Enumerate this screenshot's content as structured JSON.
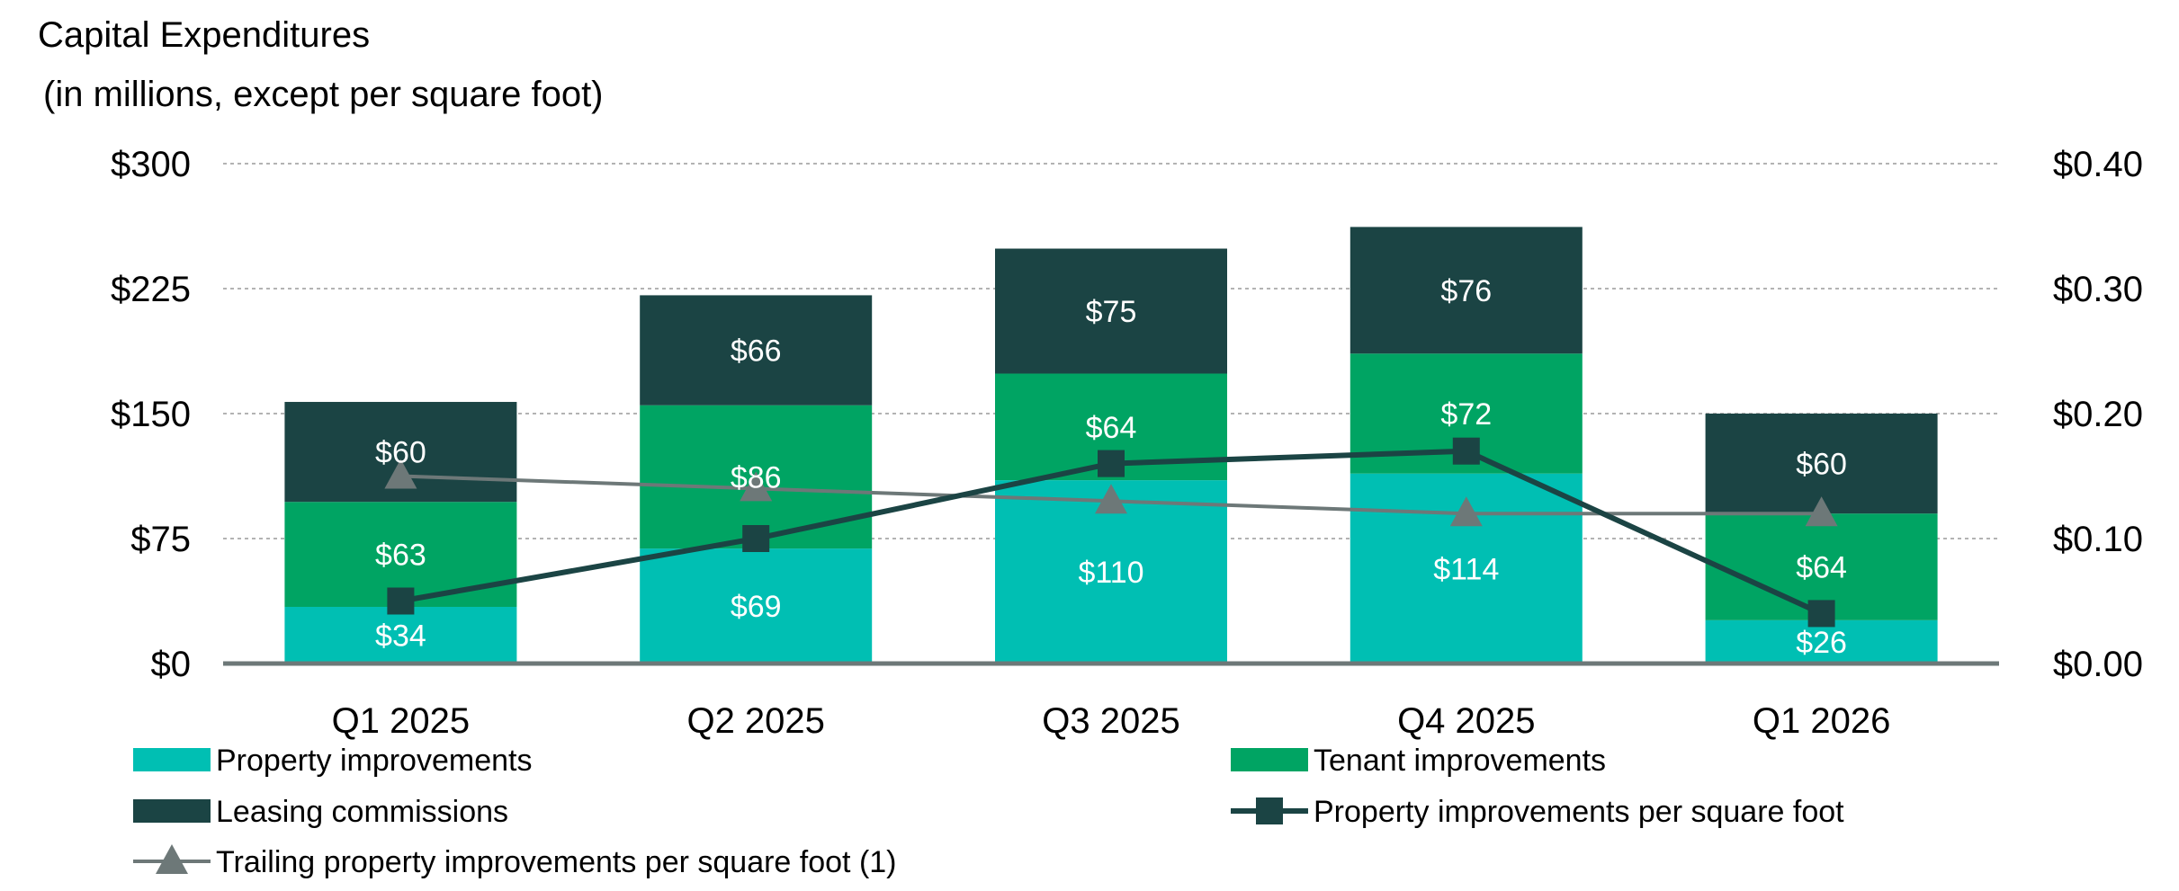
{
  "chart_data": {
    "type": "bar",
    "stacked": true,
    "title": "Capital Expenditures",
    "subtitle": "(in millions, except per square foot)",
    "categories": [
      "Q1 2025",
      "Q2 2025",
      "Q3 2025",
      "Q4 2025",
      "Q1 2026"
    ],
    "y_left": {
      "ylim": [
        0,
        300
      ],
      "ticks": [
        0,
        75,
        150,
        225,
        300
      ],
      "tick_labels": [
        "$0",
        "$75",
        "$150",
        "$225",
        "$300"
      ]
    },
    "y_right": {
      "ylim": [
        0,
        0.4
      ],
      "ticks": [
        0,
        0.1,
        0.2,
        0.3,
        0.4
      ],
      "tick_labels": [
        "$0.00",
        "$0.10",
        "$0.20",
        "$0.30",
        "$0.40"
      ]
    },
    "grid": true,
    "legend_position": "bottom",
    "bar_series": [
      {
        "name": "Property improvements",
        "color": "#00BFB3",
        "values": [
          34,
          69,
          110,
          114,
          26
        ],
        "labels": [
          "$34",
          "$69",
          "$110",
          "$114",
          "$26"
        ]
      },
      {
        "name": "Tenant improvements",
        "color": "#00A463",
        "values": [
          63,
          86,
          64,
          72,
          64
        ],
        "labels": [
          "$63",
          "$86",
          "$64",
          "$72",
          "$64"
        ]
      },
      {
        "name": "Leasing commissions",
        "color": "#1B4444",
        "values": [
          60,
          66,
          75,
          76,
          60
        ],
        "labels": [
          "$60",
          "$66",
          "$75",
          "$76",
          "$60"
        ]
      }
    ],
    "line_series": [
      {
        "name": "Property improvements per square foot",
        "color": "#1B4444",
        "marker": "square",
        "axis": "right",
        "values": [
          0.05,
          0.1,
          0.16,
          0.17,
          0.04
        ]
      },
      {
        "name": "Trailing property improvements per square foot (1)",
        "color": "#6D7878",
        "marker": "triangle",
        "axis": "right",
        "values": [
          0.15,
          0.14,
          0.13,
          0.12,
          0.12
        ]
      }
    ]
  }
}
